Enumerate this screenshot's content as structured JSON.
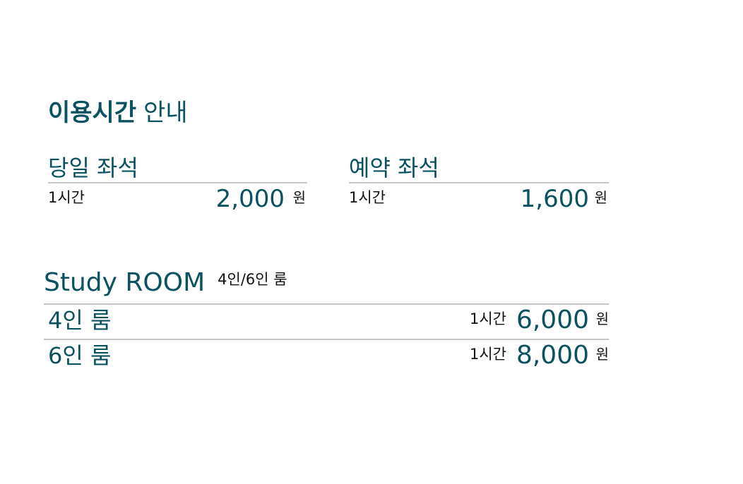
{
  "title": {
    "bold": "이용시간",
    "rest": "안내"
  },
  "daily": {
    "title": "당일 좌석",
    "duration": "1시간",
    "price": "2,000",
    "unit": "원"
  },
  "reserve": {
    "title": "예약 좌석",
    "duration": "1시간",
    "price": "1,600",
    "unit": "원"
  },
  "study": {
    "title": "Study ROOM",
    "subtitle": "4인/6인 룸",
    "rooms": [
      {
        "name": "4인 룸",
        "duration": "1시간",
        "price": "6,000",
        "unit": "원"
      },
      {
        "name": "6인 룸",
        "duration": "1시간",
        "price": "8,000",
        "unit": "원"
      }
    ]
  },
  "colors": {
    "accent": "#0b5260",
    "rule": "#c8c8c8",
    "text": "#111111"
  }
}
